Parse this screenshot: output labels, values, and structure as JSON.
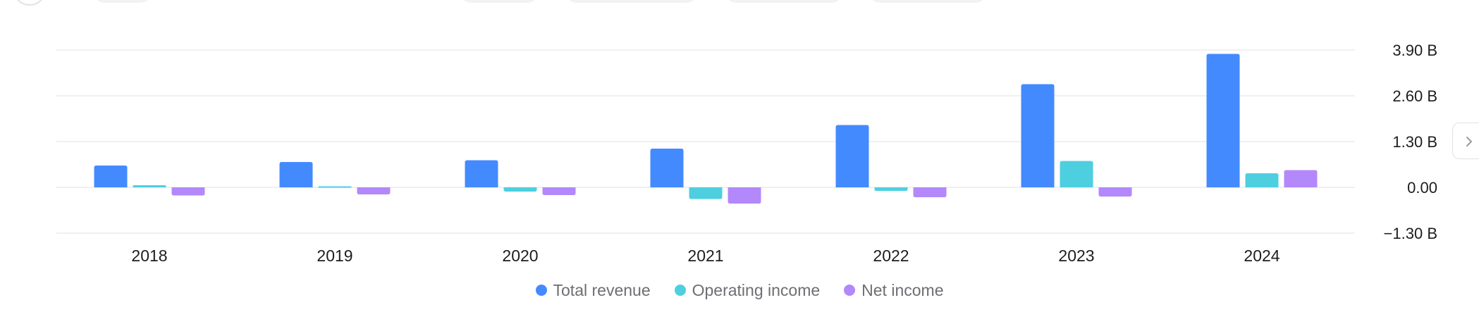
{
  "colors": {
    "total_revenue": "#448aff",
    "operating_income": "#4ecfe0",
    "net_income": "#b388fb",
    "gridline": "#ececee",
    "tick_text": "#1d1d1f"
  },
  "side_nav": {
    "icon": "chevron-right-icon"
  },
  "chart_data": {
    "type": "bar",
    "title": "",
    "xlabel": "",
    "ylabel": "",
    "categories": [
      "2018",
      "2019",
      "2020",
      "2021",
      "2022",
      "2023",
      "2024"
    ],
    "y_ticks": [
      -1.3,
      0,
      1.3,
      2.6,
      3.9
    ],
    "y_tick_labels": [
      "−1.30 B",
      "0.00",
      "1.30 B",
      "2.60 B",
      "3.90 B"
    ],
    "ylim": [
      -1.3,
      3.9
    ],
    "unit": "B",
    "grid": true,
    "y_axis_position": "right",
    "legend_position": "bottom",
    "series": [
      {
        "name": "Total revenue",
        "color": "#448aff",
        "values": [
          0.62,
          0.72,
          0.77,
          1.1,
          1.77,
          2.93,
          3.79
        ]
      },
      {
        "name": "Operating income",
        "color": "#4ecfe0",
        "values": [
          0.06,
          0.03,
          -0.12,
          -0.33,
          -0.1,
          0.75,
          0.4
        ]
      },
      {
        "name": "Net income",
        "color": "#b388fb",
        "values": [
          -0.23,
          -0.2,
          -0.22,
          -0.46,
          -0.28,
          -0.26,
          0.49
        ]
      }
    ]
  }
}
